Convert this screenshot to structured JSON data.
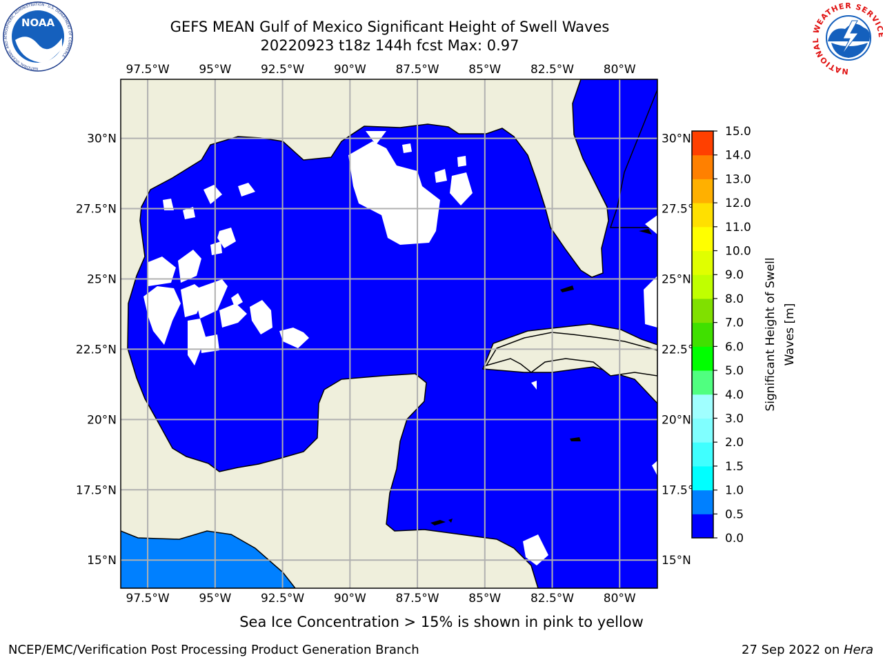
{
  "title_line1": "GEFS MEAN Gulf of Mexico Significant Height of Swell Waves",
  "title_line2": "20220923 t18z 144h fcst   Max: 0.97",
  "caption": "Sea Ice Concentration > 15% is shown in pink to yellow",
  "footer_left": "NCEP/EMC/Verification Post Processing Product Generation Branch",
  "footer_right_date": "27 Sep 2022 on ",
  "footer_right_host": "Hera",
  "logo_left": {
    "icon": "noaa-logo",
    "text": "NOAA",
    "ring": "NATIONAL OCEANIC AND ATMOSPHERIC ADMINISTRATION · U.S. DEPARTMENT OF COMMERCE"
  },
  "logo_right": {
    "icon": "nws-logo",
    "ring": "NATIONAL WEATHER SERVICE"
  },
  "map": {
    "lon_range": [
      -98.5,
      -78.6
    ],
    "lat_range": [
      14.0,
      32.1
    ],
    "lon_ticks": [
      "97.5°W",
      "95°W",
      "92.5°W",
      "90°W",
      "87.5°W",
      "85°W",
      "82.5°W",
      "80°W"
    ],
    "lat_ticks": [
      "30°N",
      "27.5°N",
      "25°N",
      "22.5°N",
      "20°N",
      "17.5°N",
      "15°N"
    ],
    "colors": {
      "land": "#efefdc",
      "sea_low": "#0000ff",
      "sea_mid": "#0080ff",
      "grid": "#b0b0b0"
    }
  },
  "colorbar": {
    "label_line1": "Significant Height of Swell",
    "label_line2": "Waves [m]",
    "ticks": [
      "0.0",
      "0.5",
      "1.0",
      "1.5",
      "2.0",
      "3.0",
      "4.0",
      "5.0",
      "6.0",
      "7.0",
      "8.0",
      "9.0",
      "10.0",
      "11.0",
      "12.0",
      "13.0",
      "14.0",
      "15.0"
    ],
    "colors": [
      "#0000ff",
      "#0080ff",
      "#00ffff",
      "#40ffff",
      "#80ffff",
      "#a0ffff",
      "#50ff80",
      "#00ff00",
      "#40e000",
      "#80e000",
      "#c0ff00",
      "#e0ff00",
      "#ffff00",
      "#ffe000",
      "#ffb000",
      "#ff8000",
      "#ff4000",
      "#ff0000"
    ]
  }
}
